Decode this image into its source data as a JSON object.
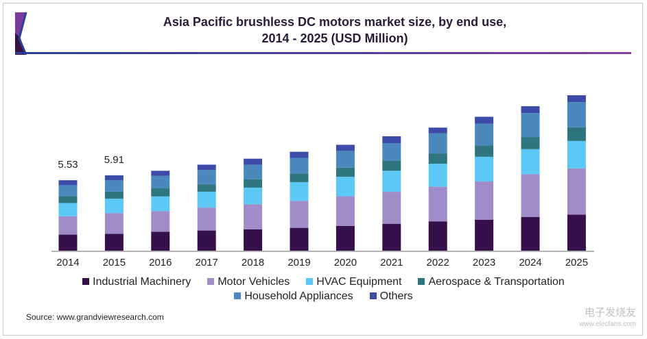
{
  "chart_data": {
    "type": "bar",
    "stacked": true,
    "title": "Asia Pacific brushless DC motors market size, by end use,",
    "subtitle": "2014 - 2025 (USD Million)",
    "xlabel": "",
    "ylabel": "",
    "ylim": [
      0,
      13
    ],
    "grid": false,
    "legend_position": "bottom",
    "categories": [
      "2014",
      "2015",
      "2016",
      "2017",
      "2018",
      "2019",
      "2020",
      "2021",
      "2022",
      "2023",
      "2024",
      "2025"
    ],
    "series": [
      {
        "name": "Industrial Machinery",
        "color": "#35104a",
        "values": [
          1.26,
          1.32,
          1.49,
          1.58,
          1.67,
          1.79,
          1.94,
          2.11,
          2.3,
          2.42,
          2.65,
          2.83
        ]
      },
      {
        "name": "Motor Vehicles",
        "color": "#a08cc8",
        "values": [
          1.44,
          1.63,
          1.61,
          1.8,
          1.97,
          2.12,
          2.33,
          2.51,
          2.72,
          3.01,
          3.35,
          3.63
        ]
      },
      {
        "name": "HVAC Equipment",
        "color": "#5bc8f5",
        "values": [
          1.04,
          1.13,
          1.16,
          1.25,
          1.31,
          1.47,
          1.53,
          1.65,
          1.8,
          1.94,
          1.97,
          2.15
        ]
      },
      {
        "name": "Aerospace & Transportation",
        "color": "#2e7580",
        "values": [
          0.54,
          0.55,
          0.63,
          0.58,
          0.66,
          0.68,
          0.72,
          0.81,
          0.81,
          0.88,
          0.95,
          1.08
        ]
      },
      {
        "name": "Household Appliances",
        "color": "#4a88be",
        "values": [
          0.86,
          0.91,
          0.98,
          1.13,
          1.13,
          1.22,
          1.31,
          1.36,
          1.58,
          1.72,
          1.88,
          1.97
        ]
      },
      {
        "name": "Others",
        "color": "#3c4aa8",
        "values": [
          0.39,
          0.37,
          0.4,
          0.41,
          0.48,
          0.48,
          0.48,
          0.54,
          0.45,
          0.54,
          0.54,
          0.54
        ]
      }
    ],
    "data_labels": [
      {
        "category": "2014",
        "text": "5.53"
      },
      {
        "category": "2015",
        "text": "5.91"
      }
    ]
  },
  "source": "Source: www.grandviewresearch.com",
  "watermark": {
    "cn": "电子发烧友",
    "url": "www.elecfans.com"
  }
}
